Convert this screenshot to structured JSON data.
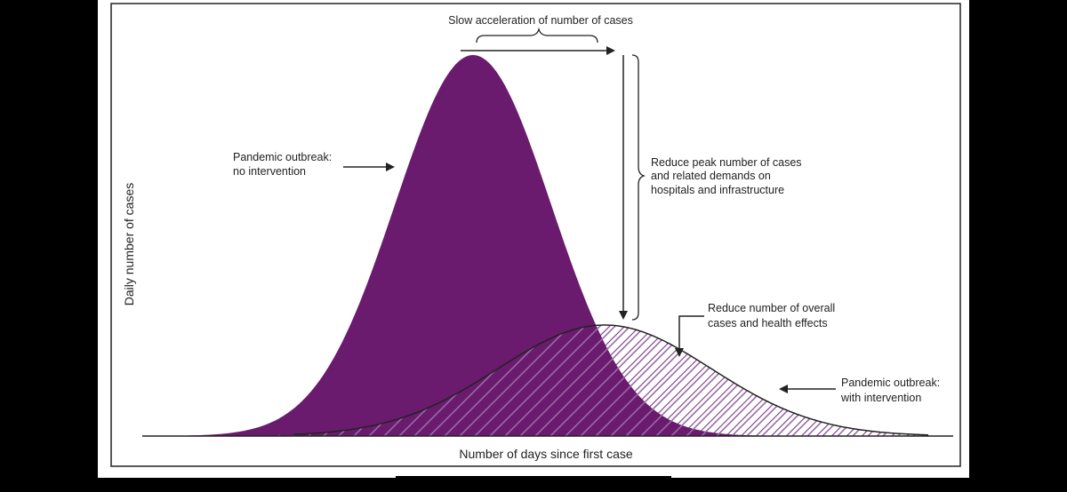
{
  "figure": {
    "x_axis_label": "Number of days since first case",
    "y_axis_label": "Daily number of cases",
    "annotations": {
      "slow_acceleration": "Slow acceleration of number of cases",
      "no_intervention_line1": "Pandemic outbreak:",
      "no_intervention_line2": "no intervention",
      "reduce_peak_line1": "Reduce peak number of cases",
      "reduce_peak_line2": "and related demands on",
      "reduce_peak_line3": "hospitals and infrastructure",
      "reduce_overall_line1": "Reduce number of overall",
      "reduce_overall_line2": "cases and health effects",
      "with_intervention_line1": "Pandemic outbreak:",
      "with_intervention_line2": "with intervention"
    },
    "colors": {
      "no_intervention_fill": "#6a1b6e",
      "with_intervention_hatch": "#7a3a86",
      "outline": "#222222",
      "background": "#ffffff",
      "page_background": "#000000"
    }
  }
}
